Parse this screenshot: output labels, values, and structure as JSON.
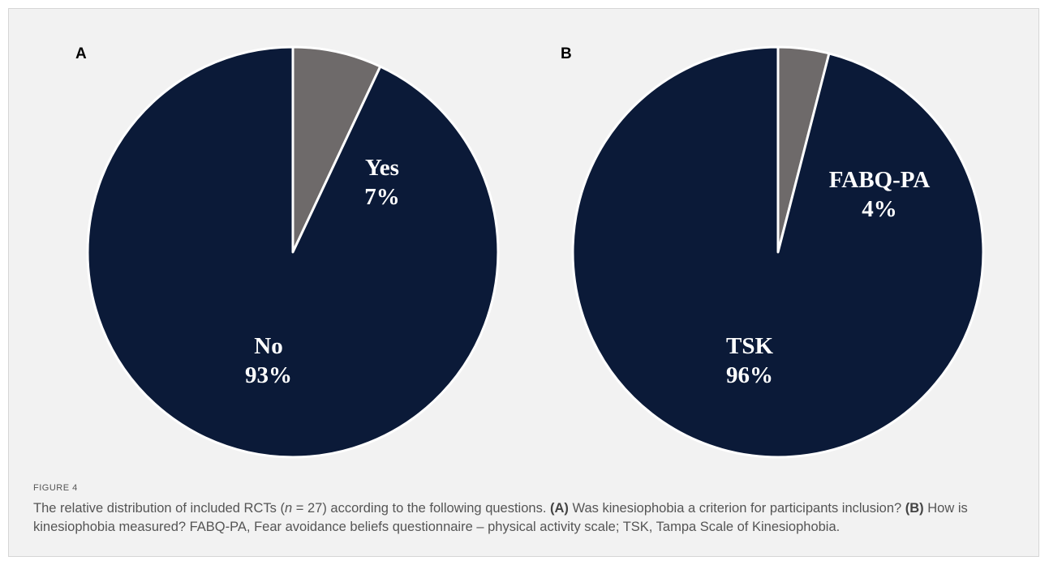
{
  "chart_data": [
    {
      "type": "pie",
      "panel": "A",
      "slices": [
        {
          "label": "Yes",
          "value_label": "7%",
          "value": 7,
          "color": "#6e6a6a"
        },
        {
          "label": "No",
          "value_label": "93%",
          "value": 93,
          "color": "#0b1a38"
        }
      ]
    },
    {
      "type": "pie",
      "panel": "B",
      "slices": [
        {
          "label": "FABQ-PA",
          "value_label": "4%",
          "value": 4,
          "color": "#6e6a6a"
        },
        {
          "label": "TSK",
          "value_label": "96%",
          "value": 96,
          "color": "#0b1a38"
        }
      ]
    }
  ],
  "caption": {
    "figure_number": "FIGURE 4",
    "text_1": "The relative distribution of included RCTs (",
    "n_symbol": "n",
    "text_2": " = 27) according to the following questions. ",
    "a_tag": "(A)",
    "text_3": " Was kinesiophobia a criterion for participants inclusion? ",
    "b_tag": "(B)",
    "text_4": " How is kinesiophobia measured? FABQ-PA, Fear avoidance beliefs questionnaire – physical activity scale; TSK, Tampa Scale of Kinesiophobia."
  }
}
